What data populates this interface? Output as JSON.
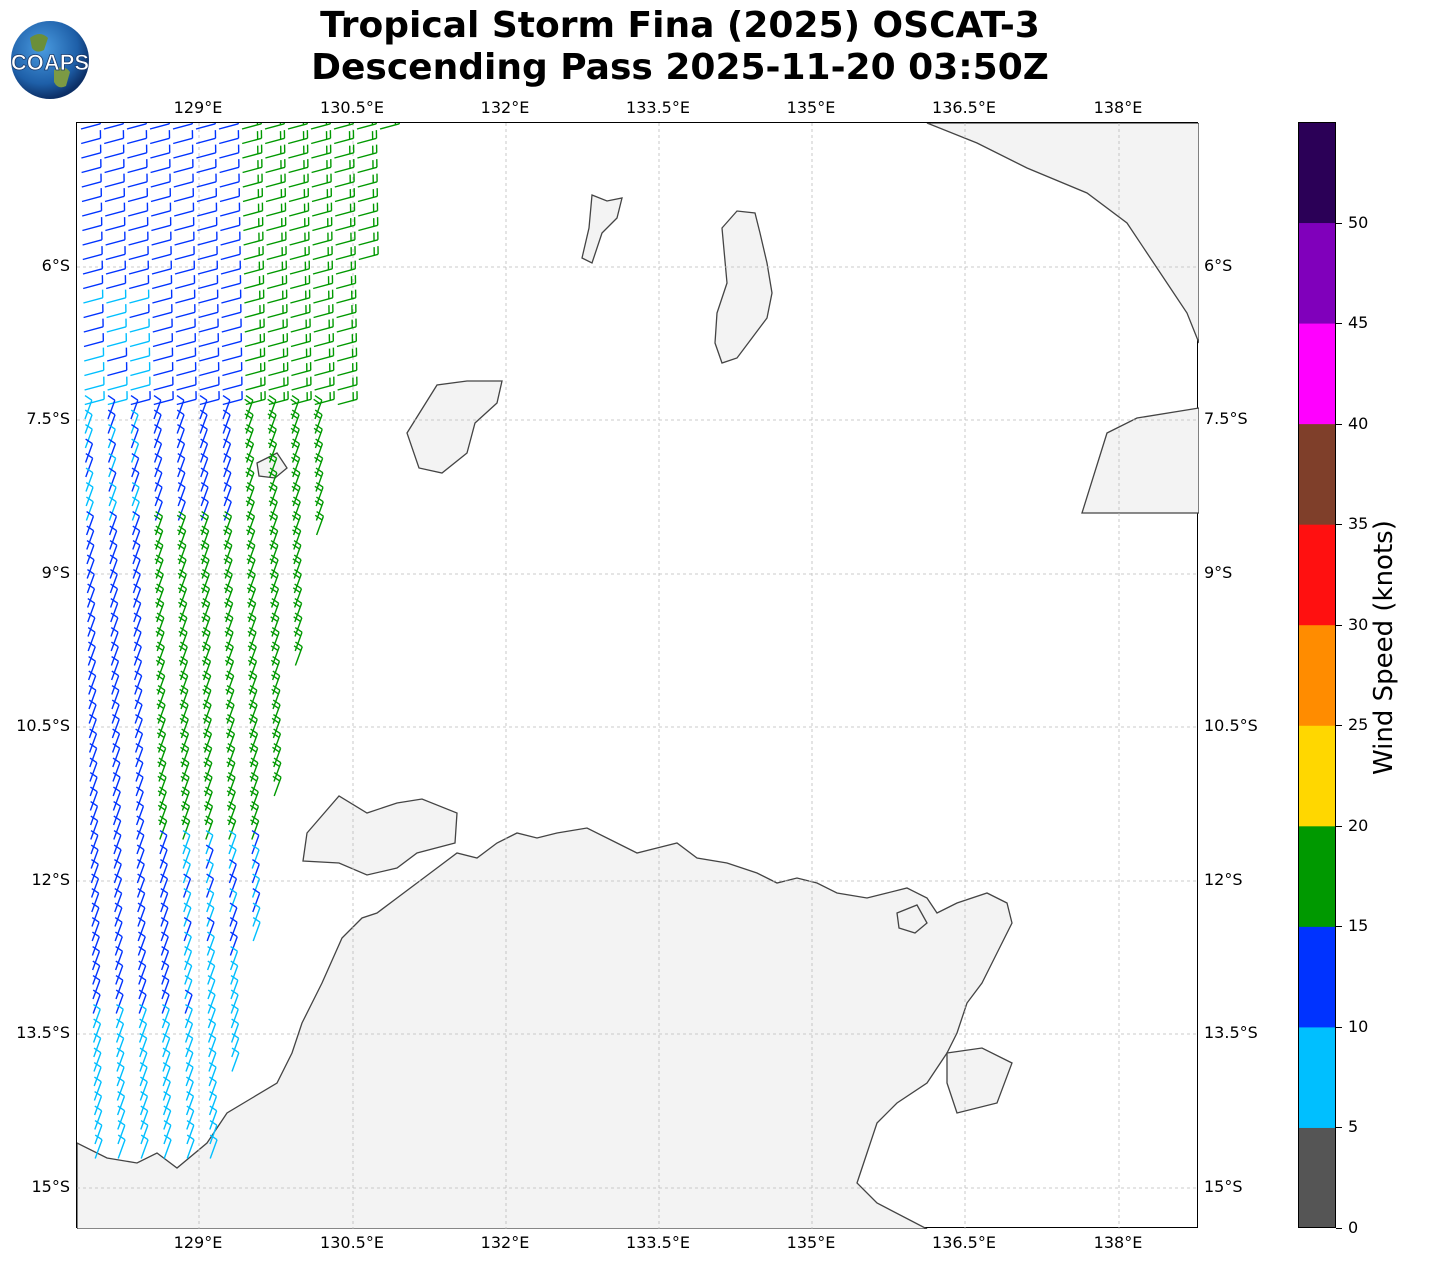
{
  "title_line1": "Tropical Storm Fina (2025) OSCAT-3",
  "title_line2": "Descending Pass 2025-11-20 03:50Z",
  "logo_text": "COAPS",
  "x_ticks": [
    "129°E",
    "130.5°E",
    "132°E",
    "133.5°E",
    "135°E",
    "136.5°E",
    "138°E"
  ],
  "y_ticks": [
    "6°S",
    "7.5°S",
    "9°S",
    "10.5°S",
    "12°S",
    "13.5°S",
    "15°S"
  ],
  "colorbar": {
    "label": "Wind Speed (knots)",
    "ticks": [
      "0",
      "5",
      "10",
      "15",
      "20",
      "25",
      "30",
      "35",
      "40",
      "45",
      "50"
    ],
    "colors": [
      "#555555",
      "#00bfff",
      "#0033ff",
      "#009900",
      "#ffd700",
      "#ff8c00",
      "#ff1010",
      "#7f3f2a",
      "#ff00ff",
      "#8000bb",
      "#2b0057"
    ]
  },
  "chart_data": {
    "type": "map-wind-barbs",
    "lon_range": [
      127.8,
      138.8
    ],
    "lat_range": [
      -15.4,
      -4.6
    ],
    "grid": true,
    "wind_barbs_summary": "Scatterometer swath along western edge, 0-20 knots"
  }
}
